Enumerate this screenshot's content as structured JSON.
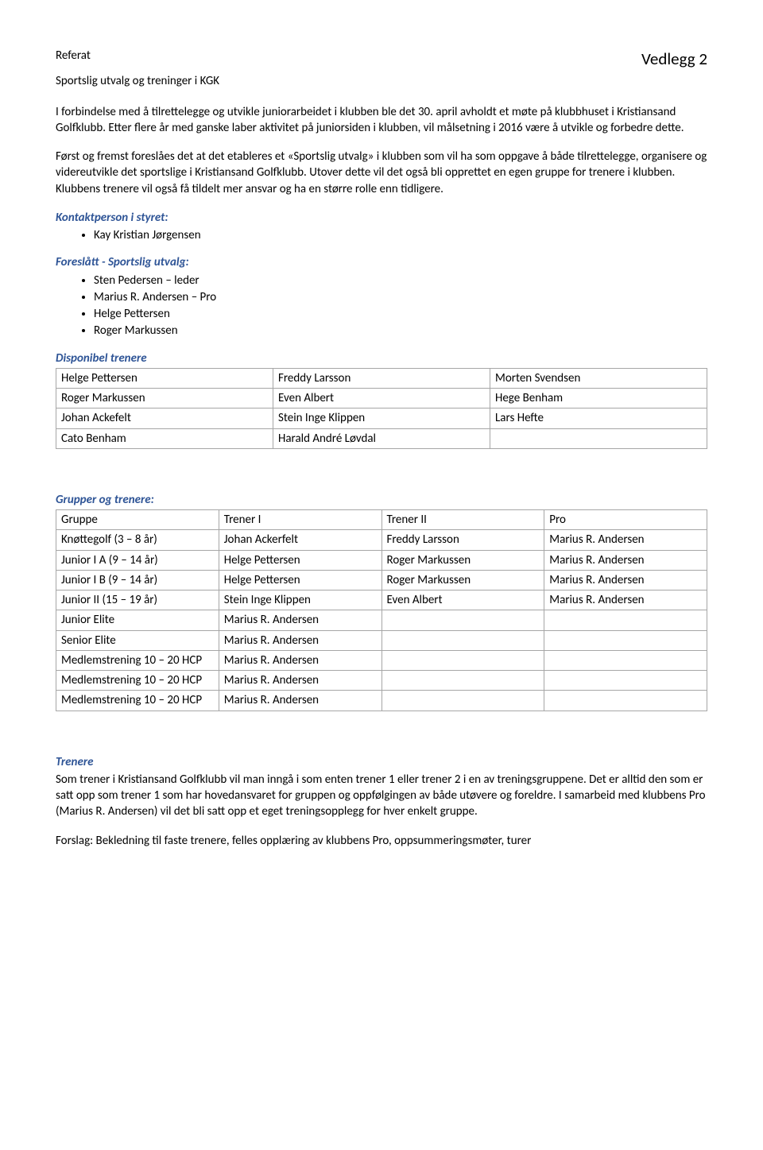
{
  "header": {
    "title": "Referat",
    "vedlegg": "Vedlegg 2"
  },
  "subtitle": "Sportslig utvalg og treninger i KGK",
  "intro_para": "I forbindelse med å tilrettelegge og utvikle juniorarbeidet i klubben ble det 30. april avholdt et møte på klubbhuset i Kristiansand Golfklubb. Etter flere år med ganske laber aktivitet på juniorsiden i klubben, vil målsetning i 2016 være å utvikle og forbedre dette.",
  "intro_para2": "Først og fremst foreslåes det at det etableres et «Sportslig utvalg» i klubben som vil ha som oppgave å både tilrettelegge, organisere og videreutvikle det sportslige i Kristiansand Golfklubb. Utover dette vil det også bli opprettet en egen gruppe for trenere i klubben. Klubbens trenere vil også få tildelt mer ansvar og ha en større rolle enn tidligere.",
  "kontaktperson": {
    "heading": "Kontaktperson i styret:",
    "items": [
      "Kay Kristian Jørgensen"
    ]
  },
  "foreslatt": {
    "heading": "Foreslått - Sportslig utvalg:",
    "items": [
      "Sten Pedersen – leder",
      "Marius R. Andersen – Pro",
      "Helge Pettersen",
      "Roger Markussen"
    ]
  },
  "disp": {
    "heading": "Disponibel trenere",
    "rows": [
      [
        "Helge Pettersen",
        "Freddy Larsson",
        "Morten Svendsen"
      ],
      [
        "Roger Markussen",
        "Even Albert",
        "Hege Benham"
      ],
      [
        "Johan Ackefelt",
        "Stein Inge Klippen",
        "Lars Hefte"
      ],
      [
        "Cato Benham",
        "Harald André Løvdal",
        ""
      ]
    ]
  },
  "grupper": {
    "heading": "Grupper og trenere:",
    "headers": [
      "Gruppe",
      "Trener I",
      "Trener II",
      "Pro"
    ],
    "rows": [
      [
        "Knøttegolf (3 – 8 år)",
        "Johan Ackerfelt",
        "Freddy Larsson",
        "Marius R. Andersen"
      ],
      [
        "Junior I A (9 – 14 år)",
        "Helge Pettersen",
        "Roger Markussen",
        "Marius R. Andersen"
      ],
      [
        "Junior I B (9 – 14 år)",
        "Helge Pettersen",
        "Roger Markussen",
        "Marius R. Andersen"
      ],
      [
        "Junior II (15 – 19 år)",
        "Stein Inge Klippen",
        "Even Albert",
        "Marius R. Andersen"
      ],
      [
        "Junior Elite",
        "Marius R. Andersen",
        "",
        ""
      ],
      [
        "Senior Elite",
        "Marius R. Andersen",
        "",
        ""
      ],
      [
        "Medlemstrening 10 – 20 HCP",
        "Marius R. Andersen",
        "",
        ""
      ],
      [
        "Medlemstrening 10 – 20 HCP",
        "Marius R. Andersen",
        "",
        ""
      ],
      [
        "Medlemstrening 10 – 20 HCP",
        "Marius R. Andersen",
        "",
        ""
      ]
    ]
  },
  "trenere": {
    "heading": "Trenere",
    "para": "Som trener i Kristiansand Golfklubb vil man inngå i som enten trener 1 eller trener 2 i en av treningsgruppene. Det er alltid den som er satt opp som trener 1 som har hovedansvaret for gruppen og oppfølgingen av både utøvere og foreldre. I samarbeid med klubbens Pro (Marius R. Andersen) vil det bli satt opp et eget treningsopplegg for hver enkelt gruppe.",
    "forslag": "Forslag: Bekledning til faste trenere, felles opplæring av klubbens Pro, oppsummeringsmøter, turer"
  },
  "colors": {
    "heading_color": "#2e5496",
    "text_color": "#000000",
    "border_color": "#a6a6a6",
    "background": "#ffffff"
  }
}
